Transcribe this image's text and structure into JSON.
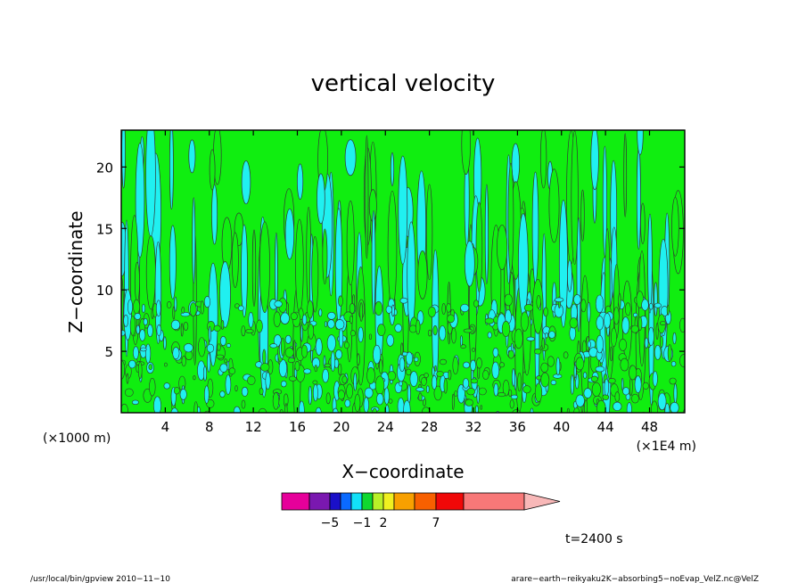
{
  "chart_data": {
    "type": "heatmap",
    "title": "vertical velocity",
    "xlabel": "X−coordinate",
    "ylabel": "Z−coordinate",
    "x_unit_left": "(×1000 m)",
    "x_unit_right": "(×1E4 m)",
    "x_ticks": [
      4,
      8,
      12,
      16,
      20,
      24,
      28,
      32,
      36,
      40,
      44,
      48
    ],
    "y_ticks": [
      5,
      10,
      15,
      20
    ],
    "xlim": [
      0,
      51.2
    ],
    "ylim": [
      0,
      23
    ],
    "grid": false,
    "time_label": "t=2400 s",
    "colorbar": {
      "levels": [
        "",
        "−5",
        "",
        "",
        "−1",
        "",
        "2",
        "",
        "",
        "7",
        "",
        ""
      ],
      "labels": [
        "−5",
        "−1",
        "2",
        "7"
      ],
      "colors": [
        "#e6009a",
        "#7a18b0",
        "#1a10c8",
        "#0a6aff",
        "#12e0f8",
        "#10d830",
        "#b8f028",
        "#f0f020",
        "#f8a000",
        "#f86000",
        "#f00808",
        "#f87878"
      ],
      "extend_color": "#f8b8b8"
    },
    "background_color": "#10ee10",
    "negative_color": "#20f0f0"
  },
  "footer": {
    "left": "/usr/local/bin/gpview  2010−11−10",
    "right": "arare−earth−reikyaku2K−absorbing5−noEvap_VelZ.nc@VelZ"
  }
}
